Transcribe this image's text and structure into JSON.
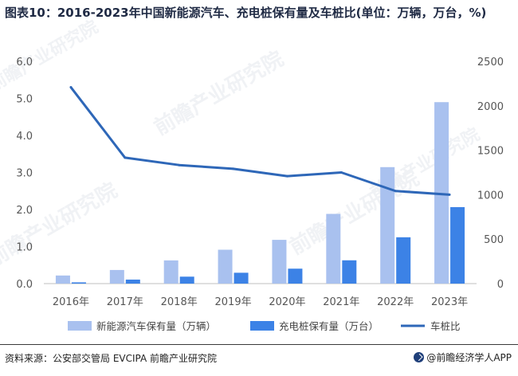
{
  "title": "图表10：2016-2023年中国新能源汽车、充电桩保有量及车桩比(单位：万辆，万台，%)",
  "source": "资料来源：公安部交管局 EVCIPA 前瞻产业研究院",
  "brand": "@前瞻经济学人APP",
  "colors": {
    "vehicle_bar": "#a9c1ef",
    "charger_bar": "#3c82e6",
    "ratio_line": "#2e67b8",
    "axis_text": "#555555",
    "legend_text": "#444444"
  },
  "chart_data": {
    "type": "bar",
    "title": "2016-2023年中国新能源汽车、充电桩保有量及车桩比",
    "categories": [
      "2016年",
      "2017年",
      "2018年",
      "2019年",
      "2020年",
      "2021年",
      "2022年",
      "2023年"
    ],
    "series": [
      {
        "name": "新能源汽车保有量（万辆）",
        "type": "bar",
        "axis": "right",
        "values": [
          91,
          153,
          261,
          381,
          492,
          784,
          1310,
          2041
        ]
      },
      {
        "name": "充电桩保有量（万台）",
        "type": "bar",
        "axis": "right",
        "values": [
          14,
          45,
          78,
          122,
          168,
          262,
          521,
          860
        ]
      },
      {
        "name": "车桩比",
        "type": "line",
        "axis": "left",
        "values": [
          5.3,
          3.4,
          3.2,
          3.1,
          2.9,
          3.0,
          2.5,
          2.4
        ]
      }
    ],
    "left_axis": {
      "ylim": [
        0,
        6
      ],
      "ticks": [
        "0.0",
        "1.0",
        "2.0",
        "3.0",
        "4.0",
        "5.0",
        "6.0"
      ]
    },
    "right_axis": {
      "ylim": [
        0,
        2500
      ],
      "ticks": [
        "0",
        "500",
        "1000",
        "1500",
        "2000",
        "2500"
      ]
    },
    "legend": [
      "新能源汽车保有量（万辆）",
      "充电桩保有量（万台）",
      "车桩比"
    ],
    "legend_position": "bottom",
    "grid": false
  }
}
